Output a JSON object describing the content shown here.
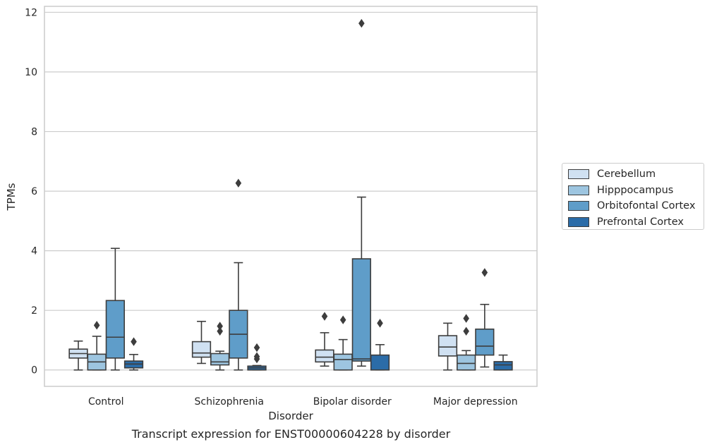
{
  "chart_data": {
    "type": "box",
    "title": "",
    "caption": "Transcript expression for ENST00000604228 by disorder",
    "xlabel": "Disorder",
    "ylabel": "TPMs",
    "ylim": [
      -0.55,
      12.2
    ],
    "yticks": [
      0,
      2,
      4,
      6,
      8,
      10,
      12
    ],
    "grid": "horizontal",
    "legend_position": "right",
    "categories": [
      "Control",
      "Schizophrenia",
      "Bipolar disorder",
      "Major depression"
    ],
    "series": [
      {
        "name": "Cerebellum",
        "color": "#d0e1f2",
        "boxes": [
          {
            "whisker_low": 0.0,
            "q1": 0.4,
            "median": 0.55,
            "q3": 0.7,
            "whisker_high": 0.97,
            "outliers": []
          },
          {
            "whisker_low": 0.22,
            "q1": 0.43,
            "median": 0.57,
            "q3": 0.95,
            "whisker_high": 1.63,
            "outliers": []
          },
          {
            "whisker_low": 0.13,
            "q1": 0.27,
            "median": 0.43,
            "q3": 0.67,
            "whisker_high": 1.25,
            "outliers": [
              1.8
            ]
          },
          {
            "whisker_low": 0.0,
            "q1": 0.47,
            "median": 0.77,
            "q3": 1.15,
            "whisker_high": 1.57,
            "outliers": []
          }
        ]
      },
      {
        "name": "Hipppocampus",
        "color": "#9dc5e0",
        "boxes": [
          {
            "whisker_low": 0.0,
            "q1": 0.0,
            "median": 0.27,
            "q3": 0.53,
            "whisker_high": 1.13,
            "outliers": [
              1.5
            ]
          },
          {
            "whisker_low": 0.0,
            "q1": 0.17,
            "median": 0.27,
            "q3": 0.55,
            "whisker_high": 0.63,
            "outliers": [
              1.3,
              1.47
            ]
          },
          {
            "whisker_low": 0.0,
            "q1": 0.0,
            "median": 0.35,
            "q3": 0.53,
            "whisker_high": 1.02,
            "outliers": [
              1.68
            ]
          },
          {
            "whisker_low": 0.0,
            "q1": 0.0,
            "median": 0.22,
            "q3": 0.5,
            "whisker_high": 0.65,
            "outliers": [
              1.3,
              1.73
            ]
          }
        ]
      },
      {
        "name": "Orbitofontal Cortex",
        "color": "#5f9dc9",
        "boxes": [
          {
            "whisker_low": 0.0,
            "q1": 0.4,
            "median": 1.1,
            "q3": 2.33,
            "whisker_high": 4.08,
            "outliers": []
          },
          {
            "whisker_low": 0.0,
            "q1": 0.4,
            "median": 1.2,
            "q3": 2.0,
            "whisker_high": 3.6,
            "outliers": [
              6.27
            ]
          },
          {
            "whisker_low": 0.13,
            "q1": 0.3,
            "median": 0.37,
            "q3": 3.73,
            "whisker_high": 5.8,
            "outliers": [
              11.63
            ]
          },
          {
            "whisker_low": 0.1,
            "q1": 0.5,
            "median": 0.8,
            "q3": 1.37,
            "whisker_high": 2.2,
            "outliers": [
              3.27
            ]
          }
        ]
      },
      {
        "name": "Prefrontal Cortex",
        "color": "#2b6ca8",
        "boxes": [
          {
            "whisker_low": 0.0,
            "q1": 0.07,
            "median": 0.2,
            "q3": 0.3,
            "whisker_high": 0.52,
            "outliers": [
              0.95
            ]
          },
          {
            "whisker_low": 0.0,
            "q1": 0.0,
            "median": 0.07,
            "q3": 0.13,
            "whisker_high": 0.15,
            "outliers": [
              0.37,
              0.45,
              0.75
            ]
          },
          {
            "whisker_low": 0.0,
            "q1": 0.0,
            "median": 0.0,
            "q3": 0.5,
            "whisker_high": 0.85,
            "outliers": [
              1.57
            ]
          },
          {
            "whisker_low": 0.0,
            "q1": 0.0,
            "median": 0.17,
            "q3": 0.28,
            "whisker_high": 0.5,
            "outliers": []
          }
        ]
      }
    ]
  }
}
